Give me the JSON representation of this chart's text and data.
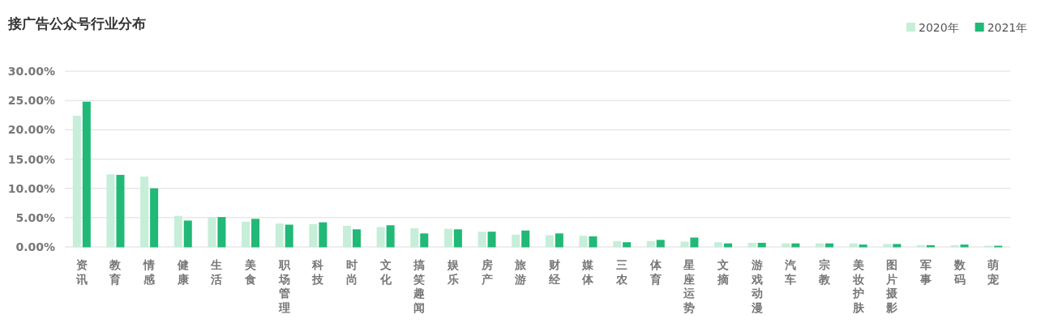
{
  "chart_data": {
    "type": "bar",
    "title": "接广告公众号行业分布",
    "categories": [
      "资讯",
      "教育",
      "情感",
      "健康",
      "生活",
      "美食",
      "职场管理",
      "科技",
      "时尚",
      "文化",
      "搞笑趣闻",
      "娱乐",
      "房产",
      "旅游",
      "财经",
      "媒体",
      "三农",
      "体育",
      "星座运势",
      "文摘",
      "游戏动漫",
      "汽车",
      "宗教",
      "美妆护肤",
      "图片摄影",
      "军事",
      "数码",
      "萌宠"
    ],
    "series": [
      {
        "name": "2020年",
        "color": "#c6eed9",
        "values": [
          22.4,
          12.4,
          12.0,
          5.3,
          5.1,
          4.3,
          4.0,
          3.9,
          3.6,
          3.4,
          3.2,
          3.1,
          2.6,
          2.1,
          2.0,
          1.9,
          1.0,
          1.0,
          0.9,
          0.8,
          0.7,
          0.6,
          0.6,
          0.6,
          0.5,
          0.3,
          0.3,
          0.2
        ]
      },
      {
        "name": "2021年",
        "color": "#20b977",
        "values": [
          24.8,
          12.3,
          10.0,
          4.5,
          5.1,
          4.8,
          3.8,
          4.2,
          3.0,
          3.7,
          2.3,
          3.0,
          2.6,
          2.8,
          2.3,
          1.8,
          0.8,
          1.2,
          1.6,
          0.6,
          0.7,
          0.6,
          0.6,
          0.4,
          0.5,
          0.3,
          0.4,
          0.2
        ]
      }
    ],
    "ylim": [
      0,
      30
    ],
    "yticks": [
      {
        "value": 0,
        "label": "0.00%"
      },
      {
        "value": 5,
        "label": "5.00%"
      },
      {
        "value": 10,
        "label": "10.00%"
      },
      {
        "value": 15,
        "label": "15.00%"
      },
      {
        "value": 20,
        "label": "20.00%"
      },
      {
        "value": 25,
        "label": "25.00%"
      },
      {
        "value": 30,
        "label": "30.00%"
      }
    ],
    "grid": "y",
    "legend": "top right"
  }
}
